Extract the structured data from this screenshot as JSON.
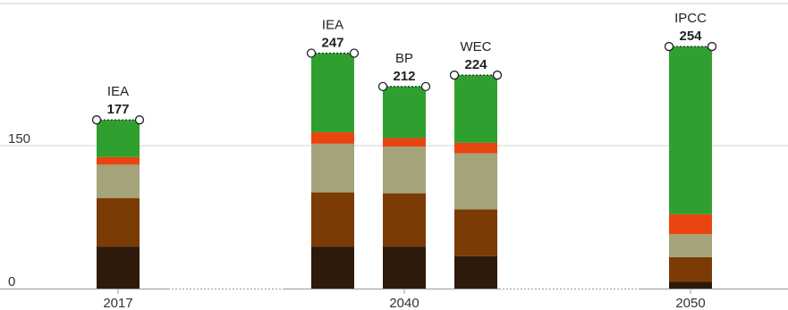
{
  "chart_data": {
    "type": "bar",
    "stacked": true,
    "ylim": [
      0,
      300
    ],
    "y_ticks": [
      {
        "value": 0,
        "label": "0"
      },
      {
        "value": 150,
        "label": "150"
      }
    ],
    "x_groups": [
      {
        "label": "2017"
      },
      {
        "label": "2040"
      },
      {
        "label": "2050"
      }
    ],
    "segment_colors": [
      "#2e1a0a",
      "#7a3b05",
      "#a5a37a",
      "#e84511",
      "#2fa02f"
    ],
    "bars": [
      {
        "group": "2017",
        "source": "IEA",
        "total": "177",
        "segments": [
          44,
          51,
          35,
          8,
          39
        ]
      },
      {
        "group": "2040",
        "source": "IEA",
        "total": "247",
        "segments": [
          44,
          57,
          51,
          12,
          83
        ]
      },
      {
        "group": "2040",
        "source": "BP",
        "total": "212",
        "segments": [
          44,
          56,
          49,
          9,
          54
        ]
      },
      {
        "group": "2040",
        "source": "WEC",
        "total": "224",
        "segments": [
          34,
          49,
          59,
          11,
          71
        ]
      },
      {
        "group": "2050",
        "source": "IPCC",
        "total": "254",
        "segments": [
          7,
          26,
          24,
          21,
          176
        ]
      }
    ]
  }
}
